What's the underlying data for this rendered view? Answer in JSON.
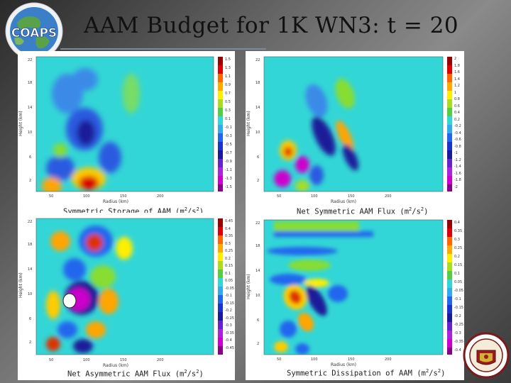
{
  "slide": {
    "title": "AAM Budget for 1K WN3:  t = 20",
    "left_logo_text": "COAPS",
    "right_logo": "university-seal"
  },
  "panels": [
    {
      "id": "symmetric-storage",
      "caption_main": "Symmetric Storage of AAM (m",
      "caption_sup": "2",
      "caption_mid": "/s",
      "caption_sup2": "2",
      "caption_end": ")",
      "colorbar_ticks": [
        "1.5",
        "1.3",
        "1.1",
        "0.9",
        "0.7",
        "0.5",
        "0.3",
        "0.1",
        "-0.1",
        "-0.3",
        "-0.5",
        "-0.7",
        "-0.9",
        "-1.1",
        "-1.3",
        "-1.5"
      ]
    },
    {
      "id": "net-symmetric-flux",
      "caption_main": "Net Symmetric AAM Flux (m",
      "caption_sup": "2",
      "caption_mid": "/s",
      "caption_sup2": "2",
      "caption_end": ")",
      "colorbar_ticks": [
        "2",
        "1.8",
        "1.6",
        "1.4",
        "1.2",
        "1",
        "0.8",
        "0.6",
        "0.4",
        "0.2",
        "-0.2",
        "-0.4",
        "-0.6",
        "-0.8",
        "-1",
        "-1.2",
        "-1.4",
        "-1.6",
        "-1.8",
        "-2"
      ]
    },
    {
      "id": "net-asymmetric-flux",
      "caption_main": "Net Asymmetric AAM Flux (m",
      "caption_sup": "2",
      "caption_mid": "/s",
      "caption_sup2": "2",
      "caption_end": ")",
      "colorbar_ticks": [
        "0.45",
        "0.4",
        "0.35",
        "0.3",
        "0.25",
        "0.2",
        "0.15",
        "0.1",
        "0.05",
        "-0.05",
        "-0.1",
        "-0.15",
        "-0.2",
        "-0.25",
        "-0.3",
        "-0.35",
        "-0.4",
        "-0.45"
      ]
    },
    {
      "id": "symmetric-dissipation",
      "caption_main": "Symmetric Dissipation of AAM (m",
      "caption_sup": "2",
      "caption_mid": "/s",
      "caption_sup2": "2",
      "caption_end": ")",
      "colorbar_ticks": [
        "0.4",
        "0.35",
        "0.3",
        "0.25",
        "0.2",
        "0.15",
        "0.1",
        "0.05",
        "-0.05",
        "-0.1",
        "-0.15",
        "-0.2",
        "-0.25",
        "-0.3",
        "-0.35",
        "-0.4"
      ]
    }
  ],
  "axes": {
    "ylabel": "Height (km)",
    "xlabel": "Radius (km)",
    "yticks": [
      "18",
      "14",
      "10",
      "6",
      "2"
    ],
    "ytick_top": "22",
    "xticks": [
      "50",
      "100",
      "150",
      "200"
    ]
  },
  "colors": {
    "background": "#33d6d6",
    "pos_strong": "#cc0000",
    "pos_mid": "#ffa500",
    "pos_low": "#aadd22",
    "neg_low": "#2266ee",
    "neg_mid": "#1a1a99",
    "neg_strong": "#cc00cc"
  }
}
